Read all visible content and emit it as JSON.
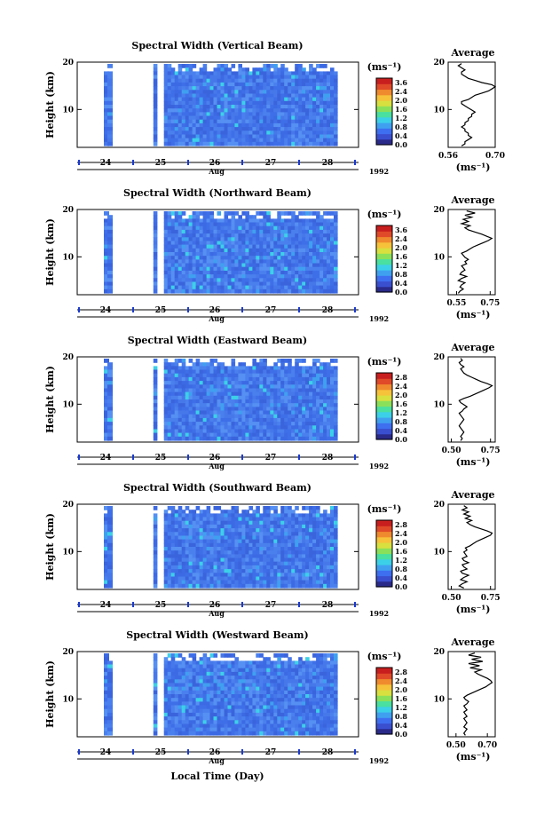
{
  "figure": {
    "xlabel": "Local Time (Day)"
  },
  "chart_data": [
    {
      "type": "heatmap",
      "title": "Spectral Width (Vertical Beam)",
      "ylabel": "Height (km)",
      "x_ticks": [
        "24",
        "25",
        "26",
        "27",
        "28"
      ],
      "month": "Aug",
      "year": "1992",
      "yticks": [
        "20",
        "10"
      ],
      "colorbar": {
        "unit": "(ms⁻¹)",
        "ticks": [
          "3.6",
          "2.4",
          "2.0",
          "1.6",
          "1.2",
          "0.8",
          "0.4",
          "0.0"
        ]
      },
      "profile": {
        "title": "Average",
        "xlabel": "(ms⁻¹)",
        "xticks": [
          "0.56",
          "0.70"
        ],
        "xlim": [
          0.56,
          0.7
        ],
        "yticks": [
          "20",
          "10"
        ],
        "values": [
          0.6,
          0.61,
          0.61,
          0.62,
          0.63,
          0.62,
          0.62,
          0.61,
          0.61,
          0.6,
          0.61,
          0.61,
          0.62,
          0.62,
          0.63,
          0.63,
          0.64,
          0.63,
          0.62,
          0.61,
          0.6,
          0.6,
          0.62,
          0.63,
          0.64,
          0.66,
          0.68,
          0.69,
          0.7,
          0.69,
          0.66,
          0.64,
          0.62,
          0.61,
          0.6,
          0.6,
          0.61,
          0.6,
          0.59,
          0.6
        ]
      }
    },
    {
      "type": "heatmap",
      "title": "Spectral Width (Northward Beam)",
      "ylabel": "Height (km)",
      "x_ticks": [
        "24",
        "25",
        "26",
        "27",
        "28"
      ],
      "month": "Aug",
      "year": "1992",
      "yticks": [
        "20",
        "10"
      ],
      "colorbar": {
        "unit": "(ms⁻¹)",
        "ticks": [
          "3.6",
          "2.4",
          "2.0",
          "1.6",
          "1.2",
          "0.8",
          "0.4",
          "0.0"
        ]
      },
      "profile": {
        "title": "Average",
        "xlabel": "(ms⁻¹)",
        "xticks": [
          "0.55",
          "0.75"
        ],
        "xlim": [
          0.5,
          0.78
        ],
        "yticks": [
          "20",
          "10"
        ],
        "values": [
          0.56,
          0.57,
          0.59,
          0.57,
          0.58,
          0.6,
          0.56,
          0.58,
          0.61,
          0.57,
          0.58,
          0.6,
          0.59,
          0.58,
          0.61,
          0.6,
          0.62,
          0.6,
          0.59,
          0.58,
          0.61,
          0.63,
          0.65,
          0.68,
          0.71,
          0.74,
          0.76,
          0.73,
          0.7,
          0.66,
          0.62,
          0.6,
          0.63,
          0.58,
          0.62,
          0.59,
          0.64,
          0.6,
          0.66,
          0.61
        ]
      }
    },
    {
      "type": "heatmap",
      "title": "Spectral Width (Eastward Beam)",
      "ylabel": "Height (km)",
      "x_ticks": [
        "24",
        "25",
        "26",
        "27",
        "28"
      ],
      "month": "Aug",
      "year": "1992",
      "yticks": [
        "20",
        "10"
      ],
      "colorbar": {
        "unit": "(ms⁻¹)",
        "ticks": [
          "2.8",
          "2.4",
          "2.0",
          "1.6",
          "1.2",
          "0.8",
          "0.4",
          "0.0"
        ]
      },
      "profile": {
        "title": "Average",
        "xlabel": "(ms⁻¹)",
        "xticks": [
          "0.50",
          "0.75"
        ],
        "xlim": [
          0.48,
          0.78
        ],
        "yticks": [
          "20",
          "10"
        ],
        "values": [
          0.56,
          0.57,
          0.56,
          0.57,
          0.58,
          0.57,
          0.56,
          0.55,
          0.56,
          0.57,
          0.58,
          0.57,
          0.56,
          0.55,
          0.57,
          0.58,
          0.6,
          0.58,
          0.56,
          0.55,
          0.58,
          0.62,
          0.65,
          0.68,
          0.71,
          0.74,
          0.76,
          0.73,
          0.69,
          0.66,
          0.63,
          0.6,
          0.58,
          0.57,
          0.56,
          0.58,
          0.56,
          0.55,
          0.57,
          0.56
        ]
      }
    },
    {
      "type": "heatmap",
      "title": "Spectral Width (Southward Beam)",
      "ylabel": "Height (km)",
      "x_ticks": [
        "24",
        "25",
        "26",
        "27",
        "28"
      ],
      "month": "Aug",
      "year": "1992",
      "yticks": [
        "20",
        "10"
      ],
      "colorbar": {
        "unit": "(ms⁻¹)",
        "ticks": [
          "2.8",
          "2.4",
          "2.0",
          "1.6",
          "1.2",
          "0.8",
          "0.4",
          "0.0"
        ]
      },
      "profile": {
        "title": "Average",
        "xlabel": "(ms⁻¹)",
        "xticks": [
          "0.50",
          "0.75"
        ],
        "xlim": [
          0.48,
          0.78
        ],
        "yticks": [
          "20",
          "10"
        ],
        "values": [
          0.58,
          0.55,
          0.57,
          0.6,
          0.56,
          0.58,
          0.61,
          0.57,
          0.56,
          0.6,
          0.58,
          0.57,
          0.61,
          0.58,
          0.57,
          0.6,
          0.59,
          0.58,
          0.6,
          0.59,
          0.62,
          0.64,
          0.66,
          0.69,
          0.72,
          0.75,
          0.76,
          0.73,
          0.69,
          0.65,
          0.62,
          0.6,
          0.63,
          0.59,
          0.62,
          0.58,
          0.61,
          0.57,
          0.6,
          0.58
        ]
      }
    },
    {
      "type": "heatmap",
      "title": "Spectral Width (Westward Beam)",
      "ylabel": "Height (km)",
      "x_ticks": [
        "24",
        "25",
        "26",
        "27",
        "28"
      ],
      "month": "Aug",
      "year": "1992",
      "yticks": [
        "20",
        "10"
      ],
      "colorbar": {
        "unit": "(ms⁻¹)",
        "ticks": [
          "2.8",
          "2.4",
          "2.0",
          "1.6",
          "1.2",
          "0.8",
          "0.4",
          "0.0"
        ]
      },
      "profile": {
        "title": "Average",
        "xlabel": "(ms⁻¹)",
        "xticks": [
          "0.50",
          "0.70"
        ],
        "xlim": [
          0.45,
          0.75
        ],
        "yticks": [
          "20",
          "10"
        ],
        "values": [
          0.56,
          0.55,
          0.56,
          0.57,
          0.55,
          0.56,
          0.57,
          0.56,
          0.55,
          0.57,
          0.56,
          0.55,
          0.57,
          0.56,
          0.55,
          0.57,
          0.58,
          0.56,
          0.55,
          0.57,
          0.6,
          0.63,
          0.66,
          0.69,
          0.71,
          0.73,
          0.72,
          0.7,
          0.67,
          0.64,
          0.62,
          0.66,
          0.59,
          0.65,
          0.58,
          0.67,
          0.6,
          0.66,
          0.58,
          0.62
        ]
      }
    }
  ]
}
